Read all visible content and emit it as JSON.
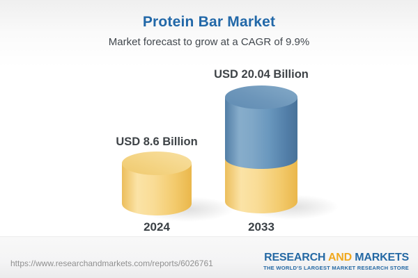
{
  "header": {
    "title": "Protein Bar Market",
    "subtitle": "Market forecast to grow at a CAGR of 9.9%"
  },
  "chart_data": {
    "type": "bar",
    "style": "3d-cylinder",
    "categories": [
      "2024",
      "2033"
    ],
    "values": [
      8.6,
      20.04
    ],
    "value_labels": [
      "USD 8.6 Billion",
      "USD 20.04 Billion"
    ],
    "unit": "USD Billion",
    "title": "Protein Bar Market",
    "subtitle": "Market forecast to grow at a CAGR of 9.9%",
    "cagr_percent": 9.9,
    "segments": [
      {
        "category": "2024",
        "parts": [
          {
            "value": 8.6,
            "color": "#f3cd74"
          }
        ]
      },
      {
        "category": "2033",
        "parts": [
          {
            "value": 8.6,
            "color": "#f3cd74"
          },
          {
            "value": 11.44,
            "color": "#6795bb"
          }
        ]
      }
    ],
    "legend": "none",
    "grid": false,
    "axes_visible": false
  },
  "bars": [
    {
      "year": "2024",
      "label": "USD 8.6 Billion"
    },
    {
      "year": "2033",
      "label": "USD 20.04 Billion"
    }
  ],
  "footer": {
    "url": "https://www.researchandmarkets.com/reports/6026761",
    "logo": {
      "word1": "RESEARCH",
      "word2": "AND",
      "word3": "MARKETS",
      "tagline": "THE WORLD'S LARGEST MARKET RESEARCH STORE"
    }
  },
  "colors": {
    "title_blue": "#2268a8",
    "text_dark": "#3e4347",
    "bar_yellow": "#f3cd74",
    "bar_blue": "#6795bb",
    "logo_blue": "#2569a4",
    "logo_orange": "#f0a81e",
    "url_gray": "#8f8f8f"
  }
}
